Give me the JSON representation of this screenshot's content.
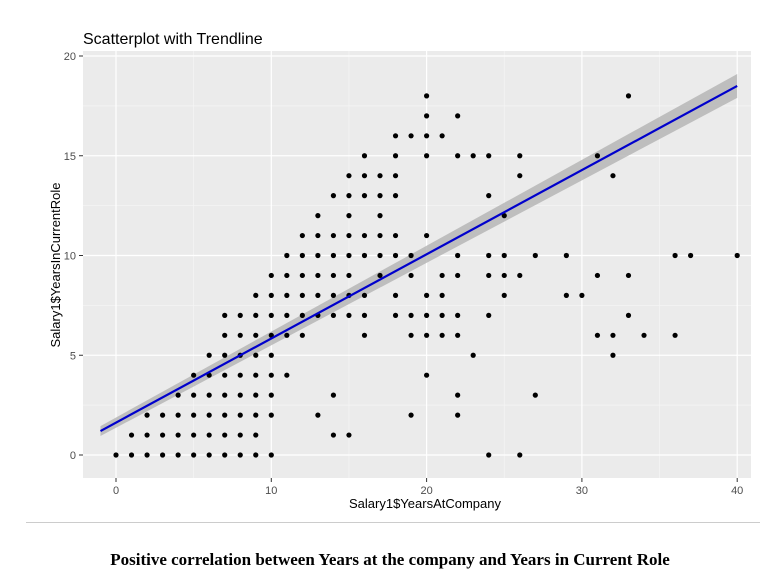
{
  "caption": "Positive correlation between  Years at the company and Years in Current Role",
  "colors": {
    "panel": "#ebebeb",
    "grid_major": "#ffffff",
    "grid_minor": "#f5f5f5",
    "point": "#000000",
    "trend": "#0000cc",
    "band": "#b3b3b3"
  },
  "chart_data": {
    "type": "scatter",
    "title": "Scatterplot with Trendline",
    "xlabel": "Salary1$YearsAtCompany",
    "ylabel": "Salary1$YearsInCurrentRole",
    "xlim": [
      -2,
      41
    ],
    "ylim": [
      -1,
      20
    ],
    "xticks": [
      0,
      10,
      20,
      30,
      40
    ],
    "yticks": [
      0,
      5,
      10,
      15,
      20
    ],
    "grid": true,
    "legend": "none",
    "trendline": {
      "method": "linear",
      "x": [
        -1,
        40
      ],
      "y": [
        1.2,
        18.5
      ],
      "band_halfwidth_start": 0.25,
      "band_halfwidth_end": 0.6
    },
    "points": [
      [
        0,
        0
      ],
      [
        1,
        0
      ],
      [
        2,
        0
      ],
      [
        3,
        0
      ],
      [
        4,
        0
      ],
      [
        5,
        0
      ],
      [
        6,
        0
      ],
      [
        7,
        0
      ],
      [
        8,
        0
      ],
      [
        9,
        0
      ],
      [
        10,
        0
      ],
      [
        24,
        0
      ],
      [
        26,
        0
      ],
      [
        1,
        1
      ],
      [
        2,
        1
      ],
      [
        3,
        1
      ],
      [
        4,
        1
      ],
      [
        5,
        1
      ],
      [
        6,
        1
      ],
      [
        7,
        1
      ],
      [
        8,
        1
      ],
      [
        9,
        1
      ],
      [
        14,
        1
      ],
      [
        15,
        1
      ],
      [
        2,
        2
      ],
      [
        3,
        2
      ],
      [
        4,
        2
      ],
      [
        5,
        2
      ],
      [
        6,
        2
      ],
      [
        7,
        2
      ],
      [
        8,
        2
      ],
      [
        9,
        2
      ],
      [
        10,
        2
      ],
      [
        13,
        2
      ],
      [
        19,
        2
      ],
      [
        22,
        2
      ],
      [
        4,
        3
      ],
      [
        5,
        3
      ],
      [
        6,
        3
      ],
      [
        7,
        3
      ],
      [
        8,
        3
      ],
      [
        9,
        3
      ],
      [
        10,
        3
      ],
      [
        14,
        3
      ],
      [
        22,
        3
      ],
      [
        27,
        3
      ],
      [
        5,
        4
      ],
      [
        6,
        4
      ],
      [
        7,
        4
      ],
      [
        8,
        4
      ],
      [
        9,
        4
      ],
      [
        10,
        4
      ],
      [
        11,
        4
      ],
      [
        20,
        4
      ],
      [
        6,
        5
      ],
      [
        7,
        5
      ],
      [
        8,
        5
      ],
      [
        9,
        5
      ],
      [
        10,
        5
      ],
      [
        23,
        5
      ],
      [
        32,
        5
      ],
      [
        7,
        6
      ],
      [
        8,
        6
      ],
      [
        9,
        6
      ],
      [
        10,
        6
      ],
      [
        11,
        6
      ],
      [
        12,
        6
      ],
      [
        16,
        6
      ],
      [
        19,
        6
      ],
      [
        20,
        6
      ],
      [
        21,
        6
      ],
      [
        22,
        6
      ],
      [
        31,
        6
      ],
      [
        32,
        6
      ],
      [
        34,
        6
      ],
      [
        36,
        6
      ],
      [
        7,
        7
      ],
      [
        8,
        7
      ],
      [
        9,
        7
      ],
      [
        10,
        7
      ],
      [
        11,
        7
      ],
      [
        12,
        7
      ],
      [
        13,
        7
      ],
      [
        14,
        7
      ],
      [
        15,
        7
      ],
      [
        16,
        7
      ],
      [
        18,
        7
      ],
      [
        19,
        7
      ],
      [
        20,
        7
      ],
      [
        21,
        7
      ],
      [
        22,
        7
      ],
      [
        24,
        7
      ],
      [
        33,
        7
      ],
      [
        9,
        8
      ],
      [
        10,
        8
      ],
      [
        11,
        8
      ],
      [
        12,
        8
      ],
      [
        13,
        8
      ],
      [
        14,
        8
      ],
      [
        15,
        8
      ],
      [
        16,
        8
      ],
      [
        18,
        8
      ],
      [
        20,
        8
      ],
      [
        21,
        8
      ],
      [
        25,
        8
      ],
      [
        29,
        8
      ],
      [
        30,
        8
      ],
      [
        10,
        9
      ],
      [
        11,
        9
      ],
      [
        12,
        9
      ],
      [
        13,
        9
      ],
      [
        14,
        9
      ],
      [
        15,
        9
      ],
      [
        17,
        9
      ],
      [
        19,
        9
      ],
      [
        21,
        9
      ],
      [
        22,
        9
      ],
      [
        24,
        9
      ],
      [
        25,
        9
      ],
      [
        26,
        9
      ],
      [
        31,
        9
      ],
      [
        33,
        9
      ],
      [
        11,
        10
      ],
      [
        12,
        10
      ],
      [
        13,
        10
      ],
      [
        14,
        10
      ],
      [
        15,
        10
      ],
      [
        16,
        10
      ],
      [
        17,
        10
      ],
      [
        18,
        10
      ],
      [
        19,
        10
      ],
      [
        22,
        10
      ],
      [
        24,
        10
      ],
      [
        25,
        10
      ],
      [
        27,
        10
      ],
      [
        29,
        10
      ],
      [
        36,
        10
      ],
      [
        37,
        10
      ],
      [
        40,
        10
      ],
      [
        12,
        11
      ],
      [
        13,
        11
      ],
      [
        14,
        11
      ],
      [
        15,
        11
      ],
      [
        16,
        11
      ],
      [
        17,
        11
      ],
      [
        18,
        11
      ],
      [
        20,
        11
      ],
      [
        13,
        12
      ],
      [
        15,
        12
      ],
      [
        17,
        12
      ],
      [
        25,
        12
      ],
      [
        14,
        13
      ],
      [
        15,
        13
      ],
      [
        16,
        13
      ],
      [
        17,
        13
      ],
      [
        18,
        13
      ],
      [
        24,
        13
      ],
      [
        15,
        14
      ],
      [
        16,
        14
      ],
      [
        17,
        14
      ],
      [
        18,
        14
      ],
      [
        26,
        14
      ],
      [
        32,
        14
      ],
      [
        16,
        15
      ],
      [
        18,
        15
      ],
      [
        20,
        15
      ],
      [
        22,
        15
      ],
      [
        23,
        15
      ],
      [
        24,
        15
      ],
      [
        26,
        15
      ],
      [
        31,
        15
      ],
      [
        18,
        16
      ],
      [
        19,
        16
      ],
      [
        20,
        16
      ],
      [
        21,
        16
      ],
      [
        20,
        17
      ],
      [
        22,
        17
      ],
      [
        20,
        18
      ],
      [
        33,
        18
      ]
    ]
  }
}
